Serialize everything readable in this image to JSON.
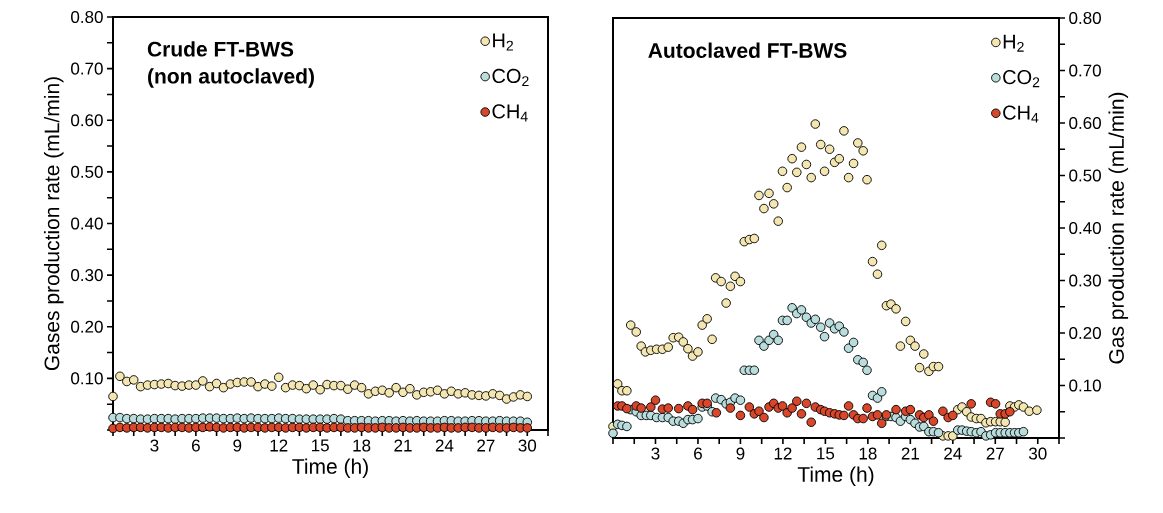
{
  "chart_data": [
    {
      "type": "scatter",
      "title": "Crude FT-BWS",
      "subtitle": "(non autoclaved)",
      "xlabel": "Time (h)",
      "ylabel": "Gases production rate (mL/min)",
      "marker": "circle",
      "legend": "top right",
      "xlim": [
        0,
        31.5
      ],
      "ylim": [
        0,
        0.8
      ],
      "xticks": [
        {
          "value": 0,
          "label": null
        },
        {
          "value": 1.5,
          "label": null
        },
        3,
        {
          "value": 4.5,
          "label": null
        },
        6,
        {
          "value": 7.5,
          "label": null
        },
        9,
        {
          "value": 10.5,
          "label": null
        },
        12,
        {
          "value": 13.5,
          "label": null
        },
        15,
        {
          "value": 16.5,
          "label": null
        },
        18,
        {
          "value": 19.5,
          "label": null
        },
        21,
        {
          "value": 22.5,
          "label": null
        },
        24,
        {
          "value": 25.5,
          "label": null
        },
        27,
        {
          "value": 28.5,
          "label": null
        },
        30,
        {
          "value": 31.5,
          "label": null
        }
      ],
      "yticks": [
        {
          "value": 0,
          "label": null
        },
        {
          "value": 0.05,
          "label": null
        },
        {
          "value": 0.1,
          "label": "0.10"
        },
        {
          "value": 0.15,
          "label": null
        },
        {
          "value": 0.2,
          "label": "0.20"
        },
        {
          "value": 0.25,
          "label": null
        },
        {
          "value": 0.3,
          "label": "0.30"
        },
        {
          "value": 0.35,
          "label": null
        },
        {
          "value": 0.4,
          "label": "0.40"
        },
        {
          "value": 0.45,
          "label": null
        },
        {
          "value": 0.5,
          "label": "0.50"
        },
        {
          "value": 0.55,
          "label": null
        },
        {
          "value": 0.6,
          "label": "0.60"
        },
        {
          "value": 0.65,
          "label": null
        },
        {
          "value": 0.7,
          "label": "0.70"
        },
        {
          "value": 0.75,
          "label": null
        },
        {
          "value": 0.8,
          "label": "0.80"
        }
      ],
      "x": [
        0,
        0.5,
        1,
        1.5,
        2,
        2.5,
        3,
        3.5,
        4,
        4.5,
        5,
        5.5,
        6,
        6.5,
        7,
        7.5,
        8,
        8.5,
        9,
        9.5,
        10,
        10.5,
        11,
        11.5,
        12,
        12.5,
        13,
        13.5,
        14,
        14.5,
        15,
        15.5,
        16,
        16.5,
        17,
        17.5,
        18,
        18.5,
        19,
        19.5,
        20,
        20.5,
        21,
        21.5,
        22,
        22.5,
        23,
        23.5,
        24,
        24.5,
        25,
        25.5,
        26,
        26.5,
        27,
        27.5,
        28,
        28.5,
        29,
        29.5,
        30
      ],
      "series": [
        {
          "name": "H$_{2}$",
          "color": "#f3e6b0",
          "values": [
            0.065,
            0.104,
            0.094,
            0.097,
            0.084,
            0.087,
            0.088,
            0.089,
            0.09,
            0.086,
            0.085,
            0.087,
            0.087,
            0.095,
            0.084,
            0.09,
            0.082,
            0.089,
            0.092,
            0.093,
            0.093,
            0.084,
            0.089,
            0.085,
            0.102,
            0.082,
            0.087,
            0.086,
            0.08,
            0.087,
            0.078,
            0.088,
            0.086,
            0.086,
            0.079,
            0.087,
            0.082,
            0.07,
            0.075,
            0.077,
            0.072,
            0.082,
            0.073,
            0.08,
            0.068,
            0.073,
            0.074,
            0.077,
            0.07,
            0.075,
            0.07,
            0.072,
            0.068,
            0.067,
            0.066,
            0.07,
            0.067,
            0.06,
            0.064,
            0.068,
            0.065
          ]
        },
        {
          "name": "CO$_{2}$",
          "color": "#b9dcdc",
          "values": [
            0.024,
            0.024,
            0.022,
            0.022,
            0.021,
            0.021,
            0.022,
            0.022,
            0.022,
            0.021,
            0.022,
            0.022,
            0.022,
            0.023,
            0.023,
            0.023,
            0.022,
            0.022,
            0.023,
            0.022,
            0.023,
            0.022,
            0.022,
            0.022,
            0.023,
            0.022,
            0.022,
            0.021,
            0.021,
            0.021,
            0.021,
            0.021,
            0.022,
            0.021,
            0.018,
            0.018,
            0.018,
            0.018,
            0.017,
            0.018,
            0.018,
            0.017,
            0.018,
            0.017,
            0.018,
            0.017,
            0.017,
            0.017,
            0.018,
            0.018,
            0.017,
            0.017,
            0.018,
            0.018,
            0.017,
            0.017,
            0.018,
            0.017,
            0.017,
            0.017,
            0.015
          ]
        },
        {
          "name": "CH$_{4}$",
          "color": "#d9472b",
          "values": [
            0.003,
            0.005,
            0.004,
            0.005,
            0.005,
            0.004,
            0.005,
            0.005,
            0.004,
            0.005,
            0.005,
            0.004,
            0.005,
            0.005,
            0.006,
            0.005,
            0.004,
            0.005,
            0.005,
            0.004,
            0.005,
            0.005,
            0.004,
            0.005,
            0.005,
            0.004,
            0.005,
            0.005,
            0.004,
            0.005,
            0.005,
            0.004,
            0.005,
            0.005,
            0.004,
            0.004,
            0.005,
            0.004,
            0.004,
            0.005,
            0.004,
            0.004,
            0.005,
            0.004,
            0.004,
            0.005,
            0.004,
            0.004,
            0.005,
            0.004,
            0.004,
            0.005,
            0.005,
            0.004,
            0.004,
            0.005,
            0.004,
            0.004,
            0.005,
            0.004,
            0.004
          ]
        }
      ]
    },
    {
      "type": "scatter",
      "title": "Autoclaved FT-BWS",
      "xlabel": "Time (h)",
      "y2label": "Gas production rate (mL/min)",
      "marker": "circle",
      "legend": "top right",
      "xlim": [
        0,
        31.5
      ],
      "y2lim": [
        0,
        0.8
      ],
      "xticks": [
        {
          "value": 0,
          "label": null
        },
        {
          "value": 1.5,
          "label": null
        },
        3,
        {
          "value": 4.5,
          "label": null
        },
        6,
        {
          "value": 7.5,
          "label": null
        },
        9,
        {
          "value": 10.5,
          "label": null
        },
        12,
        {
          "value": 13.5,
          "label": null
        },
        15,
        {
          "value": 16.5,
          "label": null
        },
        18,
        {
          "value": 19.5,
          "label": null
        },
        21,
        {
          "value": 22.5,
          "label": null
        },
        24,
        {
          "value": 25.5,
          "label": null
        },
        27,
        {
          "value": 28.5,
          "label": null
        },
        30,
        {
          "value": 31.5,
          "label": null
        }
      ],
      "y2ticks": [
        {
          "value": 0,
          "label": null
        },
        {
          "value": 0.05,
          "label": null
        },
        {
          "value": 0.1,
          "label": "0.10"
        },
        {
          "value": 0.15,
          "label": null
        },
        {
          "value": 0.2,
          "label": "0.20"
        },
        {
          "value": 0.25,
          "label": null
        },
        {
          "value": 0.3,
          "label": "0.30"
        },
        {
          "value": 0.35,
          "label": null
        },
        {
          "value": 0.4,
          "label": "0.40"
        },
        {
          "value": 0.45,
          "label": null
        },
        {
          "value": 0.5,
          "label": "0.50"
        },
        {
          "value": 0.55,
          "label": null
        },
        {
          "value": 0.6,
          "label": "0.60"
        },
        {
          "value": 0.65,
          "label": null
        },
        {
          "value": 0.7,
          "label": "0.70"
        },
        {
          "value": 0.75,
          "label": null
        },
        {
          "value": 0.8,
          "label": "0.80"
        }
      ],
      "series": [
        {
          "name": "H$_{2}$",
          "color": "#f3e6b0",
          "axis": "y2",
          "x": [
            0,
            0.33,
            0.63,
            0.98,
            1.25,
            1.64,
            1.99,
            2.29,
            2.67,
            3.08,
            3.49,
            3.9,
            4.25,
            4.64,
            4.96,
            5.29,
            5.62,
            6.0,
            6.3,
            6.65,
            7.0,
            7.25,
            7.64,
            7.99,
            8.29,
            8.62,
            9.0,
            9.27,
            9.63,
            9.98,
            10.31,
            10.66,
            11.02,
            11.35,
            11.67,
            11.97,
            12.3,
            12.65,
            12.98,
            13.31,
            13.66,
            14.0,
            14.29,
            14.67,
            14.94,
            15.3,
            15.65,
            15.98,
            16.31,
            16.64,
            16.99,
            17.29,
            17.67,
            17.94,
            18.33,
            18.68,
            18.98,
            19.31,
            19.63,
            19.99,
            20.3,
            20.67,
            21.0,
            21.33,
            21.65,
            21.95,
            22.31,
            22.63,
            22.99,
            23.3,
            23.67,
            24.0,
            24.35,
            24.65,
            24.98,
            25.3,
            25.66,
            25.99,
            26.34,
            26.67,
            27.02,
            27.35,
            27.7,
            28.03,
            28.36,
            28.66,
            28.99,
            29.4,
            29.94
          ],
          "values": [
            0.022,
            0.103,
            0.09,
            0.09,
            0.215,
            0.202,
            0.175,
            0.164,
            0.167,
            0.169,
            0.169,
            0.173,
            0.191,
            0.192,
            0.183,
            0.17,
            0.156,
            0.164,
            0.215,
            0.227,
            0.188,
            0.305,
            0.298,
            0.257,
            0.289,
            0.308,
            0.298,
            0.374,
            0.378,
            0.38,
            0.462,
            0.437,
            0.466,
            0.446,
            0.413,
            0.508,
            0.477,
            0.532,
            0.506,
            0.554,
            0.521,
            0.496,
            0.598,
            0.559,
            0.508,
            0.55,
            0.525,
            0.532,
            0.585,
            0.496,
            0.523,
            0.562,
            0.547,
            0.492,
            0.336,
            0.312,
            0.367,
            0.252,
            0.255,
            0.246,
            0.175,
            0.222,
            0.186,
            0.175,
            0.134,
            0.16,
            0.127,
            0.136,
            0.136,
            0.004,
            0.004,
            0.004,
            0.054,
            0.059,
            0.05,
            0.04,
            0.037,
            0.037,
            0.029,
            0.031,
            0.031,
            0.031,
            0.03,
            0.061,
            0.059,
            0.063,
            0.059,
            0.051,
            0.053
          ]
        },
        {
          "name": "CO$_{2}$",
          "color": "#b9dcdc",
          "axis": "y2",
          "x": [
            0,
            0.33,
            0.63,
            0.98,
            1.25,
            1.64,
            1.99,
            2.35,
            2.67,
            3.08,
            3.49,
            3.9,
            4.25,
            4.64,
            4.96,
            5.29,
            5.62,
            6.0,
            6.3,
            6.65,
            7.0,
            7.25,
            7.64,
            7.99,
            8.29,
            8.62,
            9.0,
            9.27,
            9.63,
            9.98,
            10.31,
            10.66,
            11.02,
            11.35,
            11.67,
            11.97,
            12.3,
            12.65,
            12.98,
            13.31,
            13.66,
            14.0,
            14.29,
            14.67,
            14.94,
            15.3,
            15.65,
            15.98,
            16.31,
            16.64,
            16.99,
            17.29,
            17.67,
            17.94,
            18.33,
            18.68,
            18.98,
            19.31,
            19.63,
            19.99,
            20.3,
            20.67,
            21.0,
            21.33,
            21.65,
            21.95,
            22.31,
            22.63,
            22.99,
            24.35,
            24.65,
            24.98,
            25.3,
            25.66,
            25.99,
            26.34,
            26.67,
            27.02,
            27.35,
            27.7,
            28.03,
            28.36,
            28.66,
            28.99
          ],
          "values": [
            0.009,
            0.026,
            0.024,
            0.022,
            0.054,
            0.05,
            0.043,
            0.043,
            0.043,
            0.039,
            0.039,
            0.039,
            0.032,
            0.032,
            0.028,
            0.035,
            0.035,
            0.037,
            0.059,
            0.061,
            0.05,
            0.076,
            0.073,
            0.065,
            0.068,
            0.076,
            0.072,
            0.129,
            0.129,
            0.129,
            0.186,
            0.175,
            0.186,
            0.197,
            0.186,
            0.224,
            0.224,
            0.248,
            0.237,
            0.244,
            0.23,
            0.219,
            0.226,
            0.211,
            0.193,
            0.219,
            0.208,
            0.213,
            0.202,
            0.171,
            0.182,
            0.149,
            0.144,
            0.129,
            0.081,
            0.076,
            0.088,
            0.041,
            0.041,
            0.039,
            0.032,
            0.041,
            0.035,
            0.028,
            0.021,
            0.022,
            0.012,
            0.012,
            0.01,
            0.015,
            0.015,
            0.013,
            0.012,
            0.01,
            0.012,
            0.004,
            0.006,
            0.01,
            0.01,
            0.01,
            0.01,
            0.01,
            0.01,
            0.012
          ]
        },
        {
          "name": "CH$_{4}$",
          "color": "#d9472b",
          "axis": "y2",
          "x": [
            0.33,
            0.63,
            0.98,
            1.64,
            1.99,
            2.67,
            3.0,
            3.49,
            3.9,
            4.64,
            5.29,
            5.62,
            6.3,
            6.65,
            7.3,
            8.29,
            9.0,
            9.63,
            9.98,
            10.31,
            10.66,
            11.02,
            11.35,
            11.67,
            11.97,
            12.3,
            12.65,
            12.98,
            13.31,
            13.66,
            14.0,
            14.29,
            14.67,
            14.94,
            15.3,
            15.65,
            15.98,
            16.31,
            16.64,
            16.99,
            17.29,
            17.67,
            17.94,
            18.33,
            18.68,
            18.98,
            19.31,
            19.99,
            20.67,
            21.0,
            21.65,
            21.95,
            22.31,
            22.63,
            23.3,
            23.67,
            24.0,
            25.3,
            26.67,
            27.02,
            27.35,
            27.7,
            28.03
          ],
          "values": [
            0.061,
            0.061,
            0.056,
            0.061,
            0.057,
            0.059,
            0.072,
            0.055,
            0.057,
            0.056,
            0.061,
            0.054,
            0.066,
            0.066,
            0.048,
            0.057,
            0.043,
            0.059,
            0.046,
            0.051,
            0.039,
            0.059,
            0.066,
            0.057,
            0.061,
            0.048,
            0.057,
            0.07,
            0.046,
            0.066,
            0.03,
            0.059,
            0.054,
            0.051,
            0.048,
            0.046,
            0.044,
            0.043,
            0.061,
            0.044,
            0.037,
            0.037,
            0.057,
            0.041,
            0.044,
            0.028,
            0.044,
            0.054,
            0.051,
            0.054,
            0.044,
            0.039,
            0.044,
            0.032,
            0.051,
            0.039,
            0.043,
            0.065,
            0.068,
            0.065,
            0.046,
            0.046,
            0.05
          ]
        }
      ]
    }
  ]
}
